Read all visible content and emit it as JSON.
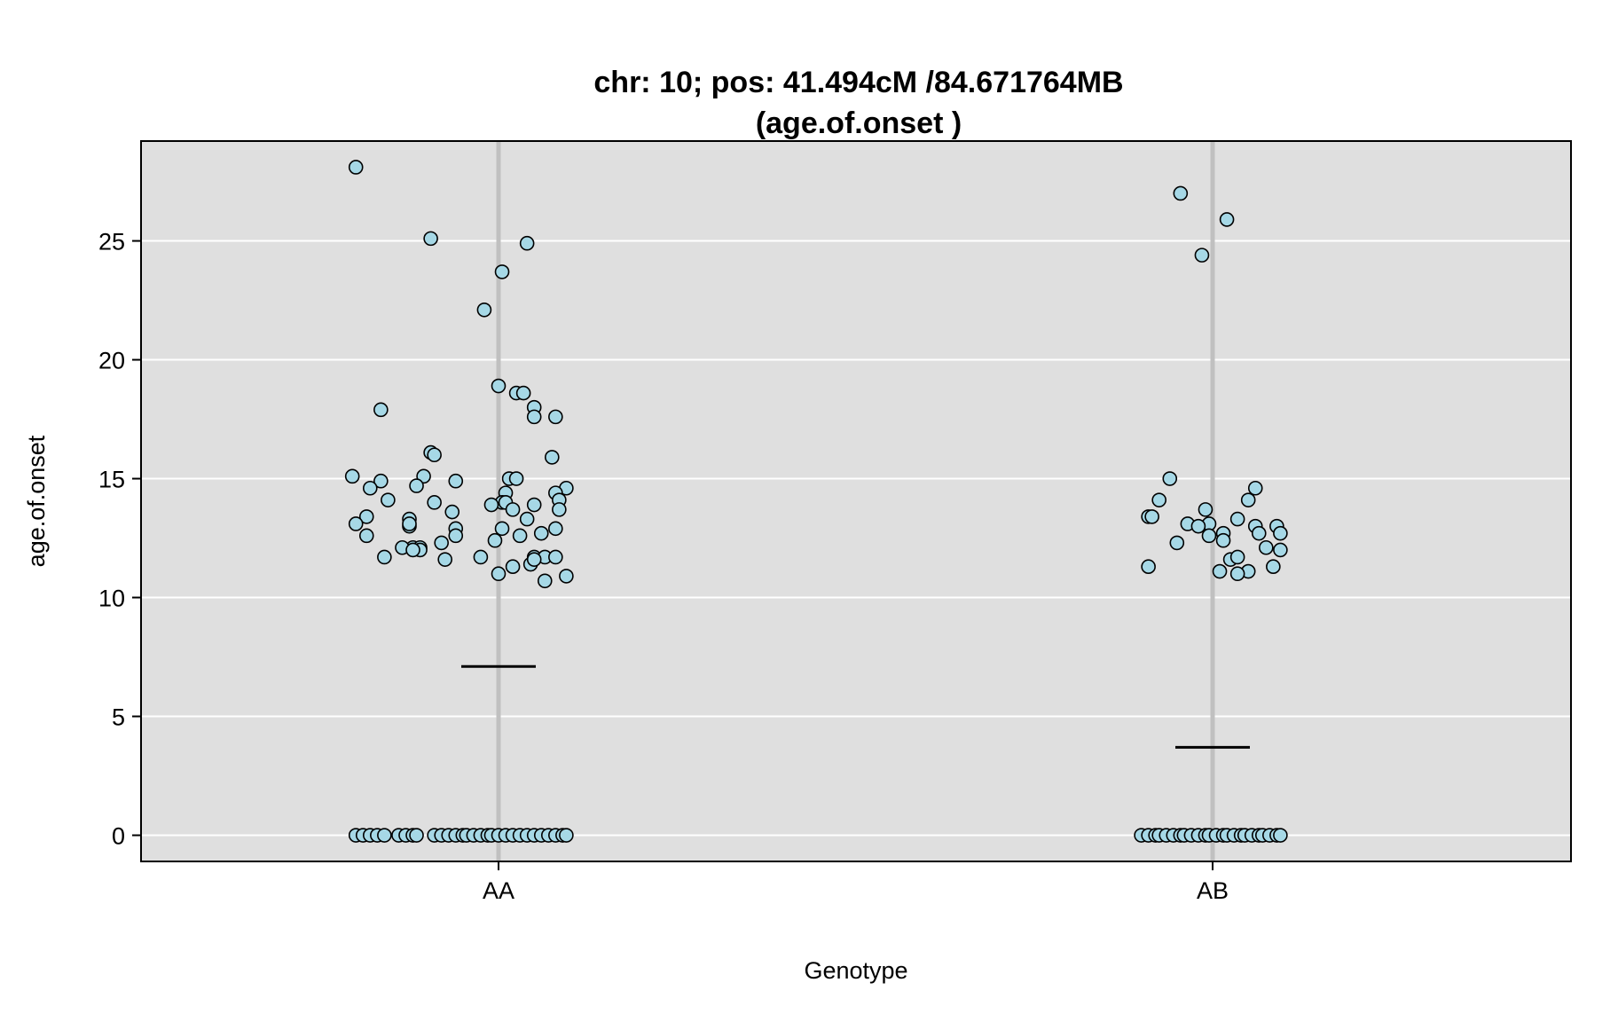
{
  "chart_data": {
    "type": "scatter",
    "title": [
      "chr: 10; pos: 41.494cM /84.671764MB",
      "(age.of.onset )"
    ],
    "xlabel": "Genotype",
    "ylabel": "age.of.onset",
    "categories": [
      "AA",
      "AB"
    ],
    "ylim": [
      -1.1,
      29.2
    ],
    "yticks": [
      0,
      5,
      10,
      15,
      20,
      25
    ],
    "grid": true,
    "colors": {
      "panel": "#dfdfdf",
      "gridline": "#ffffff",
      "category_line": "#c0c0c0",
      "point_fill": "#a6d8e6",
      "point_stroke": "#000000",
      "mean_line": "#000000"
    },
    "series": [
      {
        "category": "AA",
        "mean": 7.1,
        "points": [
          {
            "x": -0.4,
            "y": 28.1
          },
          {
            "x": -0.19,
            "y": 25.1
          },
          {
            "x": 0.08,
            "y": 24.9
          },
          {
            "x": 0.01,
            "y": 23.7
          },
          {
            "x": -0.04,
            "y": 22.1
          },
          {
            "x": 0.0,
            "y": 18.9
          },
          {
            "x": 0.05,
            "y": 18.6
          },
          {
            "x": 0.07,
            "y": 18.6
          },
          {
            "x": 0.1,
            "y": 18.0
          },
          {
            "x": 0.1,
            "y": 17.6
          },
          {
            "x": -0.33,
            "y": 17.9
          },
          {
            "x": 0.16,
            "y": 17.6
          },
          {
            "x": -0.19,
            "y": 16.1
          },
          {
            "x": -0.18,
            "y": 16.0
          },
          {
            "x": 0.15,
            "y": 15.9
          },
          {
            "x": -0.41,
            "y": 15.1
          },
          {
            "x": -0.21,
            "y": 15.1
          },
          {
            "x": 0.03,
            "y": 15.0
          },
          {
            "x": 0.05,
            "y": 15.0
          },
          {
            "x": -0.33,
            "y": 14.9
          },
          {
            "x": -0.12,
            "y": 14.9
          },
          {
            "x": -0.23,
            "y": 14.7
          },
          {
            "x": -0.36,
            "y": 14.6
          },
          {
            "x": 0.19,
            "y": 14.6
          },
          {
            "x": 0.16,
            "y": 14.4
          },
          {
            "x": 0.02,
            "y": 14.4
          },
          {
            "x": -0.31,
            "y": 14.1
          },
          {
            "x": 0.17,
            "y": 14.1
          },
          {
            "x": -0.18,
            "y": 14.0
          },
          {
            "x": 0.01,
            "y": 14.0
          },
          {
            "x": 0.02,
            "y": 14.0
          },
          {
            "x": -0.02,
            "y": 13.9
          },
          {
            "x": 0.1,
            "y": 13.9
          },
          {
            "x": 0.04,
            "y": 13.7
          },
          {
            "x": 0.17,
            "y": 13.7
          },
          {
            "x": -0.13,
            "y": 13.6
          },
          {
            "x": -0.37,
            "y": 13.4
          },
          {
            "x": -0.25,
            "y": 13.3
          },
          {
            "x": 0.08,
            "y": 13.3
          },
          {
            "x": -0.4,
            "y": 13.1
          },
          {
            "x": -0.25,
            "y": 13.0
          },
          {
            "x": -0.25,
            "y": 13.1
          },
          {
            "x": 0.01,
            "y": 12.9
          },
          {
            "x": 0.16,
            "y": 12.9
          },
          {
            "x": -0.12,
            "y": 12.9
          },
          {
            "x": -0.37,
            "y": 12.6
          },
          {
            "x": -0.12,
            "y": 12.6
          },
          {
            "x": 0.06,
            "y": 12.6
          },
          {
            "x": 0.12,
            "y": 12.7
          },
          {
            "x": -0.01,
            "y": 12.4
          },
          {
            "x": -0.16,
            "y": 12.3
          },
          {
            "x": -0.24,
            "y": 12.1
          },
          {
            "x": -0.22,
            "y": 12.1
          },
          {
            "x": -0.27,
            "y": 12.1
          },
          {
            "x": -0.22,
            "y": 12.0
          },
          {
            "x": -0.24,
            "y": 12.0
          },
          {
            "x": -0.32,
            "y": 11.7
          },
          {
            "x": -0.15,
            "y": 11.6
          },
          {
            "x": -0.05,
            "y": 11.7
          },
          {
            "x": 0.1,
            "y": 11.7
          },
          {
            "x": 0.13,
            "y": 11.7
          },
          {
            "x": 0.16,
            "y": 11.7
          },
          {
            "x": 0.09,
            "y": 11.4
          },
          {
            "x": 0.1,
            "y": 11.6
          },
          {
            "x": 0.04,
            "y": 11.3
          },
          {
            "x": 0.0,
            "y": 11.0
          },
          {
            "x": 0.19,
            "y": 10.9
          },
          {
            "x": 0.13,
            "y": 10.7
          },
          {
            "x": -0.4,
            "y": 0
          },
          {
            "x": -0.38,
            "y": 0
          },
          {
            "x": -0.36,
            "y": 0
          },
          {
            "x": -0.34,
            "y": 0
          },
          {
            "x": -0.32,
            "y": 0
          },
          {
            "x": -0.28,
            "y": 0
          },
          {
            "x": -0.26,
            "y": 0
          },
          {
            "x": -0.24,
            "y": 0
          },
          {
            "x": -0.23,
            "y": 0
          },
          {
            "x": -0.18,
            "y": 0
          },
          {
            "x": -0.16,
            "y": 0
          },
          {
            "x": -0.14,
            "y": 0
          },
          {
            "x": -0.12,
            "y": 0
          },
          {
            "x": -0.1,
            "y": 0
          },
          {
            "x": -0.09,
            "y": 0
          },
          {
            "x": -0.07,
            "y": 0
          },
          {
            "x": -0.05,
            "y": 0
          },
          {
            "x": -0.03,
            "y": 0
          },
          {
            "x": -0.02,
            "y": 0
          },
          {
            "x": 0.0,
            "y": 0
          },
          {
            "x": 0.02,
            "y": 0
          },
          {
            "x": 0.04,
            "y": 0
          },
          {
            "x": 0.06,
            "y": 0
          },
          {
            "x": 0.08,
            "y": 0
          },
          {
            "x": 0.1,
            "y": 0
          },
          {
            "x": 0.12,
            "y": 0
          },
          {
            "x": 0.14,
            "y": 0
          },
          {
            "x": 0.16,
            "y": 0
          },
          {
            "x": 0.18,
            "y": 0
          },
          {
            "x": 0.19,
            "y": 0
          }
        ]
      },
      {
        "category": "AB",
        "mean": 3.7,
        "points": [
          {
            "x": -0.09,
            "y": 27.0
          },
          {
            "x": 0.04,
            "y": 25.9
          },
          {
            "x": -0.03,
            "y": 24.4
          },
          {
            "x": -0.12,
            "y": 15.0
          },
          {
            "x": 0.12,
            "y": 14.6
          },
          {
            "x": -0.15,
            "y": 14.1
          },
          {
            "x": 0.1,
            "y": 14.1
          },
          {
            "x": -0.02,
            "y": 13.7
          },
          {
            "x": -0.18,
            "y": 13.4
          },
          {
            "x": -0.17,
            "y": 13.4
          },
          {
            "x": 0.07,
            "y": 13.3
          },
          {
            "x": -0.07,
            "y": 13.1
          },
          {
            "x": -0.01,
            "y": 13.1
          },
          {
            "x": -0.04,
            "y": 13.0
          },
          {
            "x": 0.12,
            "y": 13.0
          },
          {
            "x": 0.18,
            "y": 13.0
          },
          {
            "x": 0.03,
            "y": 12.7
          },
          {
            "x": 0.13,
            "y": 12.7
          },
          {
            "x": 0.19,
            "y": 12.7
          },
          {
            "x": -0.01,
            "y": 12.6
          },
          {
            "x": 0.03,
            "y": 12.4
          },
          {
            "x": -0.1,
            "y": 12.3
          },
          {
            "x": 0.15,
            "y": 12.1
          },
          {
            "x": 0.19,
            "y": 12.0
          },
          {
            "x": 0.05,
            "y": 11.6
          },
          {
            "x": 0.07,
            "y": 11.7
          },
          {
            "x": -0.18,
            "y": 11.3
          },
          {
            "x": 0.17,
            "y": 11.3
          },
          {
            "x": 0.02,
            "y": 11.1
          },
          {
            "x": 0.1,
            "y": 11.1
          },
          {
            "x": 0.07,
            "y": 11.0
          },
          {
            "x": -0.2,
            "y": 0
          },
          {
            "x": -0.18,
            "y": 0
          },
          {
            "x": -0.16,
            "y": 0
          },
          {
            "x": -0.15,
            "y": 0
          },
          {
            "x": -0.13,
            "y": 0
          },
          {
            "x": -0.11,
            "y": 0
          },
          {
            "x": -0.09,
            "y": 0
          },
          {
            "x": -0.08,
            "y": 0
          },
          {
            "x": -0.06,
            "y": 0
          },
          {
            "x": -0.04,
            "y": 0
          },
          {
            "x": -0.02,
            "y": 0
          },
          {
            "x": -0.01,
            "y": 0
          },
          {
            "x": 0.01,
            "y": 0
          },
          {
            "x": 0.03,
            "y": 0
          },
          {
            "x": 0.04,
            "y": 0
          },
          {
            "x": 0.06,
            "y": 0
          },
          {
            "x": 0.08,
            "y": 0
          },
          {
            "x": 0.09,
            "y": 0
          },
          {
            "x": 0.11,
            "y": 0
          },
          {
            "x": 0.13,
            "y": 0
          },
          {
            "x": 0.14,
            "y": 0
          },
          {
            "x": 0.16,
            "y": 0
          },
          {
            "x": 0.18,
            "y": 0
          },
          {
            "x": 0.19,
            "y": 0
          }
        ]
      }
    ]
  }
}
